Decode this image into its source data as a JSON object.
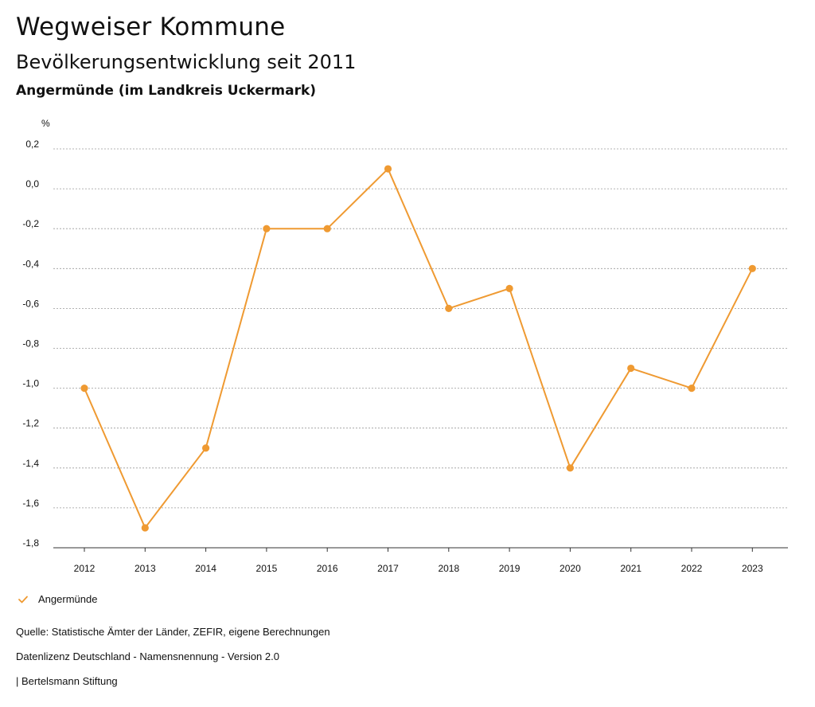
{
  "header": {
    "title": "Wegweiser Kommune",
    "subtitle": "Bevölkerungsentwicklung seit 2011",
    "region": "Angermünde (im Landkreis Uckermark)"
  },
  "chart_data": {
    "type": "line",
    "title": "Bevölkerungsentwicklung seit 2011",
    "ylabel": "%",
    "xlabel": "",
    "categories": [
      "2012",
      "2013",
      "2014",
      "2015",
      "2016",
      "2017",
      "2018",
      "2019",
      "2020",
      "2021",
      "2022",
      "2023"
    ],
    "series": [
      {
        "name": "Angermünde",
        "color": "#ef9a32",
        "values": [
          -1.0,
          -1.7,
          -1.3,
          -0.2,
          -0.2,
          0.1,
          -0.6,
          -0.5,
          -1.4,
          -0.9,
          -1.0,
          -0.4
        ]
      }
    ],
    "ylim": [
      -1.8,
      0.2
    ],
    "yticks": [
      0.2,
      0.0,
      -0.2,
      -0.4,
      -0.6,
      -0.8,
      -1.0,
      -1.2,
      -1.4,
      -1.6,
      -1.8
    ],
    "ytick_labels": [
      "0,2",
      "0,0",
      "-0,2",
      "-0,4",
      "-0,6",
      "-0,8",
      "-1,0",
      "-1,2",
      "-1,4",
      "-1,6",
      "-1,8"
    ],
    "grid": true,
    "legend_position": "bottom-left"
  },
  "legend": {
    "label": "Angermünde",
    "icon": "check-icon"
  },
  "footer": {
    "source": "Quelle: Statistische Ämter der Länder, ZEFIR, eigene Berechnungen",
    "license": "Datenlizenz Deutschland - Namensnennung - Version 2.0",
    "publisher": "| Bertelsmann Stiftung"
  }
}
